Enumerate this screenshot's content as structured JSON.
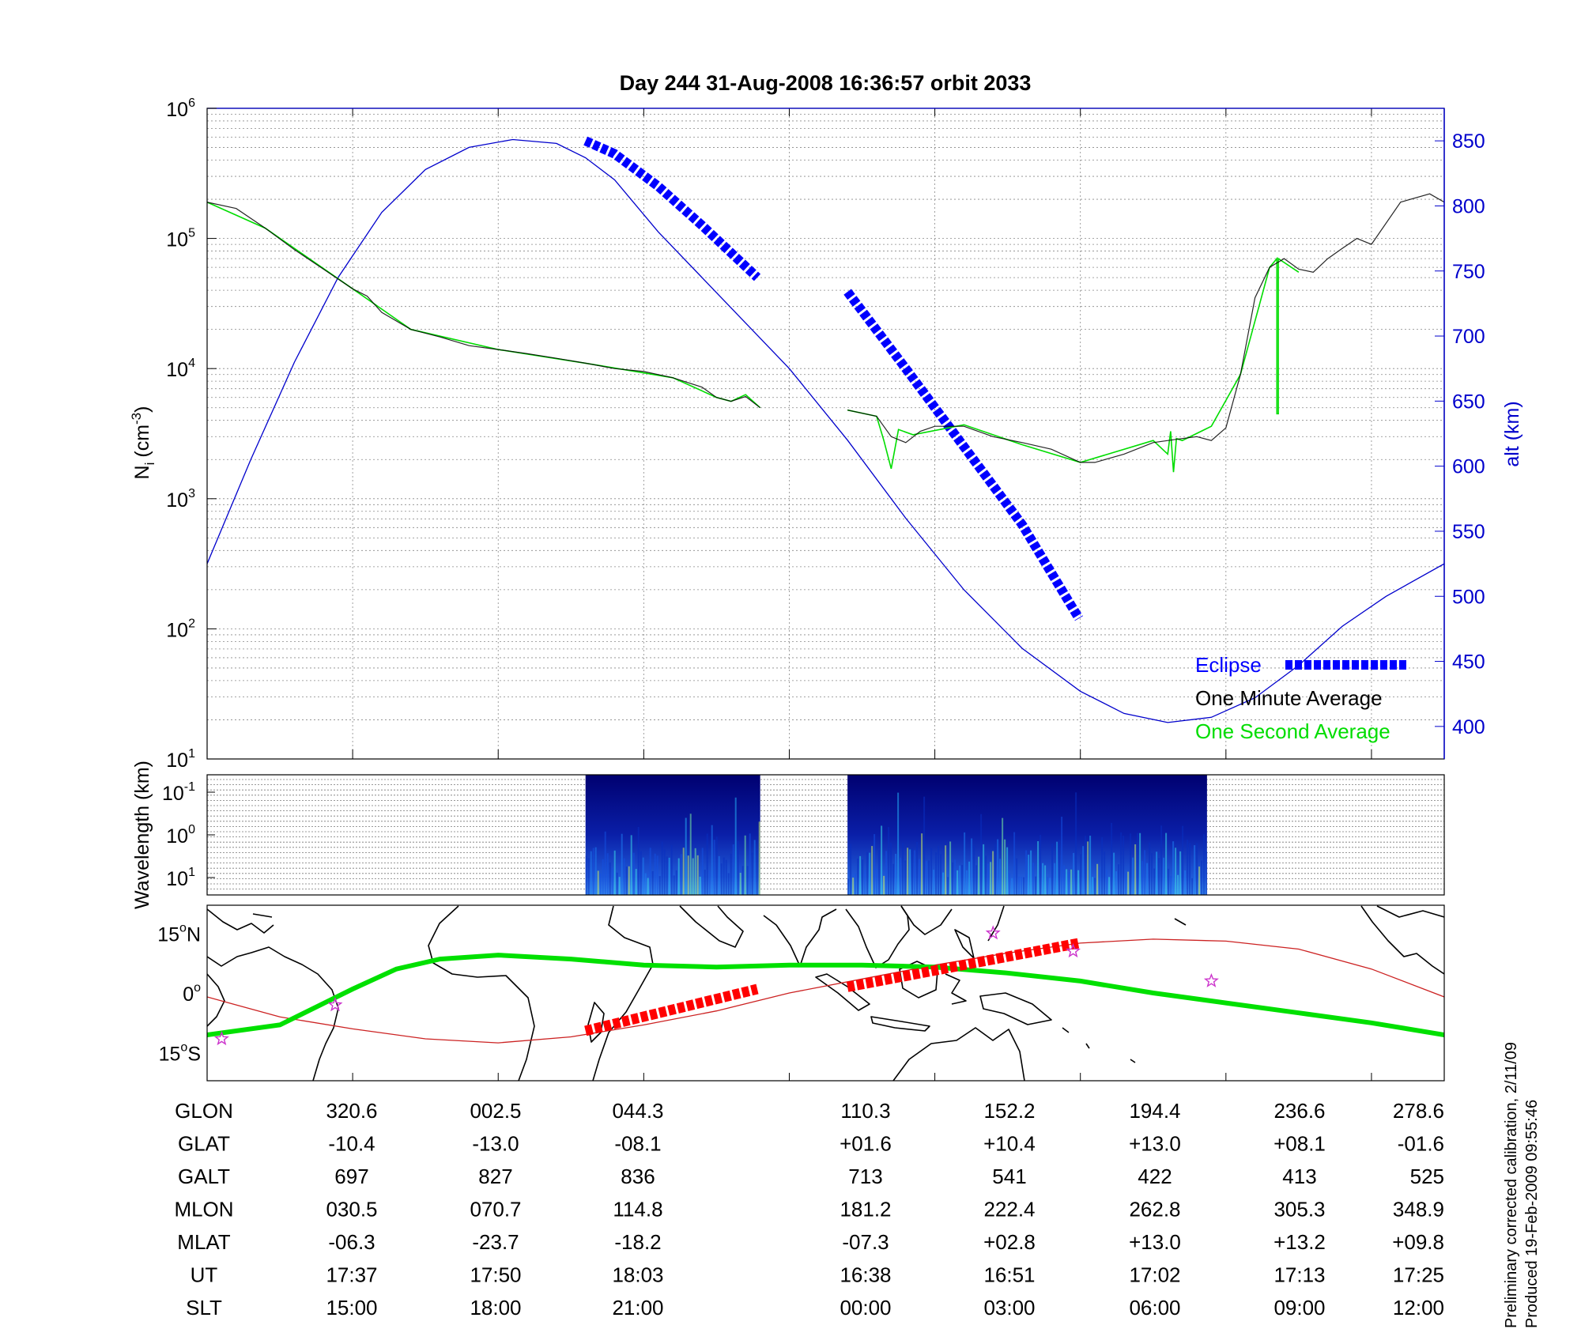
{
  "title": "Day 244  31-Aug-2008 16:36:57   orbit 2033",
  "footnote": {
    "line1": "Preliminary corrected calibration, 2/11/09",
    "line2": "Produced 19-Feb-2009 09:55:46"
  },
  "colors": {
    "altitude": "#0000cc",
    "minute_average": "#000000",
    "second_average": "#00dd00",
    "eclipse": "#0000ff",
    "eclipse_map": "#ff0000",
    "ground_track": "#00e000",
    "magnetic_equator": "#cc2222",
    "star": "#cc33cc"
  },
  "chart_data": [
    {
      "type": "line",
      "panel": "density",
      "ylabel_main": "N",
      "ylabel_sub": "i",
      "ylabel_unit": "(cm",
      "ylabel_exp": "-3",
      "ylabel_close": ")",
      "yscale": "log",
      "ylim": [
        10,
        1000000
      ],
      "yticks": [
        {
          "base": "10",
          "exp": "1",
          "value": 10
        },
        {
          "base": "10",
          "exp": "2",
          "value": 100
        },
        {
          "base": "10",
          "exp": "3",
          "value": 1000
        },
        {
          "base": "10",
          "exp": "4",
          "value": 10000
        },
        {
          "base": "10",
          "exp": "5",
          "value": 100000
        },
        {
          "base": "10",
          "exp": "6",
          "value": 1000000
        }
      ],
      "y2label": "alt (km)",
      "y2lim": [
        375,
        875
      ],
      "y2ticks": [
        "400",
        "450",
        "500",
        "550",
        "600",
        "650",
        "700",
        "750",
        "800",
        "850"
      ],
      "xlim": [
        0,
        8.5
      ],
      "grid": true,
      "legend_position": "bottom-right",
      "legend": [
        "Eclipse",
        "One Minute Average",
        "One Second Average"
      ],
      "altitude": {
        "x": [
          0,
          0.3,
          0.6,
          0.9,
          1.2,
          1.5,
          1.8,
          2.1,
          2.4,
          2.6,
          2.8,
          3.1,
          3.4,
          3.7,
          4.0,
          4.4,
          4.8,
          5.2,
          5.6,
          6.0,
          6.3,
          6.6,
          6.9,
          7.2,
          7.5,
          7.8,
          8.1,
          8.5
        ],
        "y": [
          525,
          605,
          680,
          745,
          795,
          828,
          845,
          851,
          848,
          837,
          820,
          780,
          745,
          710,
          675,
          620,
          560,
          505,
          460,
          427,
          410,
          403,
          407,
          422,
          447,
          477,
          500,
          525
        ]
      },
      "eclipse": [
        {
          "x": [
            2.6,
            2.8,
            3.1,
            3.4,
            3.78
          ],
          "y": [
            850,
            840,
            815,
            785,
            745
          ]
        },
        {
          "x": [
            4.4,
            4.8,
            5.2,
            5.6,
            5.99
          ],
          "y": [
            734,
            675,
            615,
            555,
            483
          ]
        }
      ],
      "one_minute_average": [
        {
          "x": [
            0,
            0.2,
            0.4,
            0.6,
            0.8,
            1.0,
            1.1,
            1.2,
            1.4,
            1.6,
            1.8,
            2.0,
            2.2,
            2.4,
            2.6,
            2.8,
            3.0,
            3.2,
            3.4,
            3.5,
            3.6,
            3.7,
            3.8
          ],
          "y": [
            190000,
            170000,
            120000,
            82000,
            58000,
            41000,
            36000,
            27000,
            20000,
            17500,
            15000,
            14000,
            13000,
            12000,
            11000,
            10000,
            9500,
            8500,
            7200,
            6000,
            5600,
            6100,
            5000
          ]
        },
        {
          "x": [
            4.4,
            4.6,
            4.7,
            4.8,
            4.9,
            5.0,
            5.2,
            5.4,
            5.6,
            5.8,
            6.0,
            6.1,
            6.3,
            6.5,
            6.7,
            6.8,
            6.9,
            7.0,
            7.1,
            7.2,
            7.3,
            7.4,
            7.5,
            7.6,
            7.7,
            7.8,
            7.9,
            8.0,
            8.2,
            8.4,
            8.5
          ],
          "y": [
            4800,
            4300,
            3000,
            2700,
            3300,
            3600,
            3600,
            3000,
            2700,
            2400,
            1900,
            1900,
            2200,
            2700,
            2900,
            3000,
            2800,
            3500,
            9000,
            35000,
            60000,
            70000,
            58000,
            55000,
            70000,
            84000,
            100000,
            90000,
            190000,
            220000,
            190000
          ]
        }
      ],
      "one_second_average": [
        {
          "x": [
            0,
            0.4,
            1.0,
            1.4,
            2.0,
            2.6,
            3.2,
            3.5,
            3.6,
            3.7,
            3.8
          ],
          "y": [
            190000,
            120000,
            41000,
            20000,
            14000,
            11000,
            8500,
            6000,
            5600,
            6300,
            5000
          ]
        },
        {
          "x": [
            4.4,
            4.6,
            4.65,
            4.7,
            4.75,
            4.85,
            5.2,
            5.6,
            6.0,
            6.5,
            6.6,
            6.62,
            6.64,
            6.66,
            6.7,
            6.9,
            7.1,
            7.3
          ],
          "y": [
            4800,
            4300,
            2800,
            1700,
            3400,
            3100,
            3700,
            2600,
            1900,
            2800,
            2200,
            3300,
            1600,
            2900,
            2800,
            3600,
            9000,
            60000
          ]
        },
        {
          "x": [
            7.3,
            7.35,
            7.35,
            7.36,
            7.36,
            7.5
          ],
          "y": [
            60000,
            70000,
            4500,
            4500,
            70000,
            55000
          ]
        }
      ]
    },
    {
      "type": "heatmap",
      "panel": "spectrogram",
      "ylabel": "Wavelength (km)",
      "yticks": [
        {
          "base": "10",
          "exp": "-1"
        },
        {
          "base": "10",
          "exp": "0"
        },
        {
          "base": "10",
          "exp": "1"
        }
      ],
      "segments": [
        {
          "x_start": 2.6,
          "x_end": 3.8
        },
        {
          "x_start": 4.4,
          "x_end": 6.87
        }
      ]
    },
    {
      "type": "line",
      "panel": "map",
      "ylim": [
        -22,
        22
      ],
      "yticks": [
        {
          "deg": "15",
          "hemi": "N",
          "value": 15
        },
        {
          "deg": "0",
          "hemi": "",
          "value": 0
        },
        {
          "deg": "15",
          "hemi": "S",
          "value": -15
        }
      ],
      "ground_track": {
        "x": [
          0,
          0.5,
          1.0,
          1.3,
          1.6,
          2.0,
          2.5,
          3.0,
          3.5,
          4.0,
          4.5,
          5.0,
          5.5,
          6.0,
          6.5,
          7.0,
          7.5,
          8.0,
          8.5
        ],
        "y": [
          -10.5,
          -8,
          1,
          6,
          8.5,
          9.5,
          8.5,
          7,
          6.5,
          7,
          7,
          6.5,
          5,
          3,
          0,
          -2.5,
          -5,
          -7.5,
          -10.5
        ]
      },
      "magnetic_equator": {
        "x": [
          0,
          0.5,
          1.0,
          1.5,
          2.0,
          2.5,
          3.0,
          3.5,
          4.0,
          4.5,
          5.0,
          5.5,
          6.0,
          6.5,
          7.0,
          7.5,
          8.0,
          8.5
        ],
        "y": [
          -1,
          -6,
          -9,
          -11.5,
          -12.5,
          -11,
          -8,
          -4.5,
          0,
          3.5,
          7,
          10,
          12.5,
          13.5,
          13,
          11,
          6,
          -1
        ]
      },
      "eclipse": [
        {
          "x": [
            2.6,
            3.78
          ],
          "y": [
            -9.5,
            1
          ]
        },
        {
          "x": [
            4.4,
            5.99
          ],
          "y": [
            1.5,
            12.5
          ]
        }
      ],
      "stars": [
        {
          "x": 0.1,
          "y": -11.5
        },
        {
          "x": 0.88,
          "y": -3
        },
        {
          "x": 5.4,
          "y": 15
        },
        {
          "x": 5.95,
          "y": 10.5
        },
        {
          "x": 6.9,
          "y": 3
        }
      ]
    }
  ],
  "table": {
    "rows": [
      {
        "label": "GLON",
        "values": [
          "320.6",
          "002.5",
          "044.3",
          "110.3",
          "152.2",
          "194.4",
          "236.6",
          "278.6"
        ]
      },
      {
        "label": "GLAT",
        "values": [
          "-10.4",
          "-13.0",
          "-08.1",
          "+01.6",
          "+10.4",
          "+13.0",
          "+08.1",
          "-01.6"
        ]
      },
      {
        "label": "GALT",
        "values": [
          "697",
          "827",
          "836",
          "713",
          "541",
          "422",
          "413",
          "525"
        ]
      },
      {
        "label": "MLON",
        "values": [
          "030.5",
          "070.7",
          "114.8",
          "181.2",
          "222.4",
          "262.8",
          "305.3",
          "348.9"
        ]
      },
      {
        "label": "MLAT",
        "values": [
          "-06.3",
          "-23.7",
          "-18.2",
          "-07.3",
          "+02.8",
          "+13.0",
          "+13.2",
          "+09.8"
        ]
      },
      {
        "label": "UT",
        "values": [
          "17:37",
          "17:50",
          "18:03",
          "16:38",
          "16:51",
          "17:02",
          "17:13",
          "17:25"
        ]
      },
      {
        "label": "SLT",
        "values": [
          "15:00",
          "18:00",
          "21:00",
          "00:00",
          "03:00",
          "06:00",
          "09:00",
          "12:00"
        ]
      }
    ]
  }
}
